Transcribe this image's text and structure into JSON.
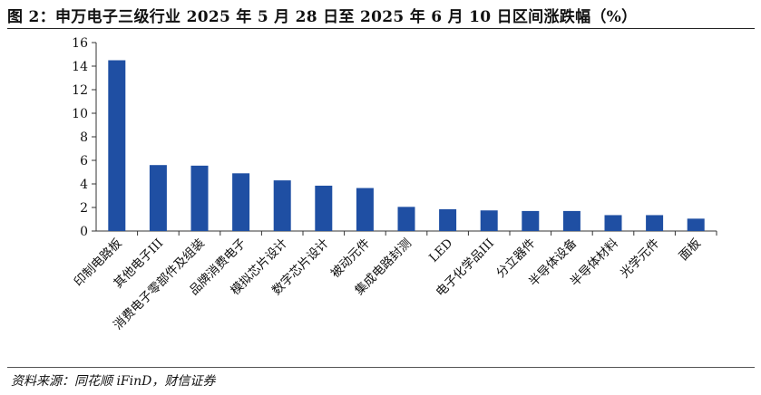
{
  "title": "图 2：申万电子三级行业 2025 年 5 月 28 日至 2025 年 6 月 10 日区间涨跌幅（%）",
  "source": "资料来源：同花顺 iFinD，财信证券",
  "colors": {
    "bar": "#1f4fa3",
    "axis": "#333333"
  },
  "chart_data": {
    "type": "bar",
    "categories": [
      "印制电路板",
      "其他电子III",
      "消费电子零部件及组装",
      "品牌消费电子",
      "模拟芯片设计",
      "数字芯片设计",
      "被动元件",
      "集成电路封测",
      "LED",
      "电子化学品III",
      "分立器件",
      "半导体设备",
      "半导体材料",
      "光学元件",
      "面板"
    ],
    "values": [
      14.5,
      5.6,
      5.55,
      4.9,
      4.3,
      3.85,
      3.65,
      2.05,
      1.85,
      1.75,
      1.7,
      1.7,
      1.35,
      1.35,
      1.05
    ],
    "yticks": [
      0,
      2,
      4,
      6,
      8,
      10,
      12,
      14,
      16
    ],
    "ylim": [
      0,
      16
    ],
    "grid": false,
    "legend": "none"
  }
}
